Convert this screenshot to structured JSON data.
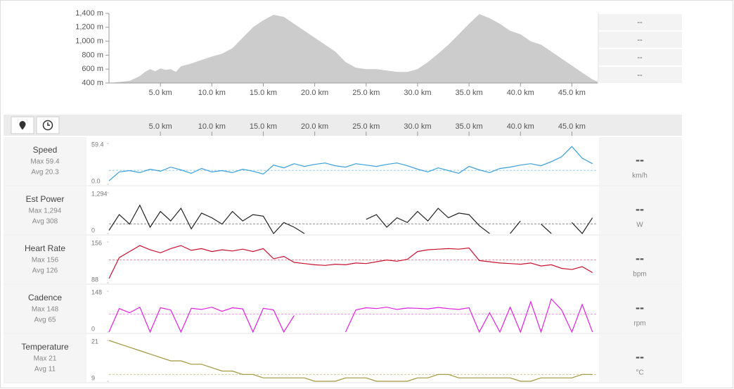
{
  "chart_data": [
    {
      "type": "area",
      "color": "#cccccc",
      "x": [
        0,
        2,
        3,
        3.5,
        4,
        4.5,
        5,
        5.5,
        6,
        6.5,
        7,
        8,
        9,
        10,
        11,
        12,
        13,
        14,
        15,
        16,
        17,
        18,
        19,
        20,
        21,
        22,
        23,
        24,
        25,
        26,
        27,
        28,
        29,
        30,
        31,
        32,
        33,
        34,
        35,
        36,
        37,
        38,
        39,
        40,
        41,
        42,
        43,
        44,
        45,
        46,
        47,
        47.5
      ],
      "values": [
        400,
        430,
        500,
        560,
        600,
        570,
        610,
        590,
        600,
        560,
        640,
        680,
        730,
        780,
        820,
        900,
        1050,
        1200,
        1300,
        1380,
        1350,
        1250,
        1150,
        1050,
        950,
        850,
        700,
        620,
        600,
        600,
        580,
        560,
        560,
        600,
        700,
        820,
        950,
        1100,
        1250,
        1390,
        1330,
        1250,
        1150,
        1100,
        1000,
        950,
        850,
        750,
        650,
        550,
        450,
        420
      ],
      "xlim": [
        0,
        47.5
      ],
      "ylim": [
        400,
        1400
      ],
      "xticks": [
        {
          "value": 5,
          "label": "5.0 km"
        },
        {
          "value": 10,
          "label": "10.0 km"
        },
        {
          "value": 15,
          "label": "15.0 km"
        },
        {
          "value": 20,
          "label": "20.0 km"
        },
        {
          "value": 25,
          "label": "25.0 km"
        },
        {
          "value": 30,
          "label": "30.0 km"
        },
        {
          "value": 35,
          "label": "35.0 km"
        },
        {
          "value": 40,
          "label": "40.0 km"
        },
        {
          "value": 45,
          "label": "45.0 km"
        }
      ],
      "yticks": [
        {
          "value": 400,
          "label": "400 m"
        },
        {
          "value": 600,
          "label": "600 m"
        },
        {
          "value": 800,
          "label": "800 m"
        },
        {
          "value": 1000,
          "label": "1,000 m"
        },
        {
          "value": 1200,
          "label": "1,200 m"
        },
        {
          "value": 1400,
          "label": "1,400 m"
        }
      ],
      "summary": [
        "--",
        "--",
        "--",
        "--"
      ]
    },
    {
      "type": "line",
      "x": [
        0,
        1,
        2,
        3,
        4,
        5,
        6,
        7,
        8,
        9,
        10,
        11,
        12,
        13,
        14,
        15,
        16,
        17,
        18,
        19,
        20,
        21,
        22,
        23,
        24,
        25,
        26,
        27,
        28,
        29,
        30,
        31,
        32,
        33,
        34,
        35,
        36,
        37,
        38,
        39,
        40,
        41,
        42,
        43,
        44,
        45,
        46,
        47
      ],
      "xlim": [
        0,
        47.5
      ],
      "xticks": [
        {
          "value": 5,
          "label": "5.0 km"
        },
        {
          "value": 10,
          "label": "10.0 km"
        },
        {
          "value": 15,
          "label": "15.0 km"
        },
        {
          "value": 20,
          "label": "20.0 km"
        },
        {
          "value": 25,
          "label": "25.0 km"
        },
        {
          "value": 30,
          "label": "30.0 km"
        },
        {
          "value": 35,
          "label": "35.0 km"
        },
        {
          "value": 40,
          "label": "40.0 km"
        },
        {
          "value": 45,
          "label": "45.0 km"
        }
      ],
      "series": [
        {
          "name": "Speed",
          "max_label": "Max 59.4",
          "avg": 20.3,
          "avg_label": "Avg 20.3",
          "current": "--",
          "unit": "km/h",
          "color": "#3a9fd8",
          "ylim": [
            0,
            59.4
          ],
          "yticks": [
            {
              "value": 0,
              "label": "0.0"
            },
            59.4
          ],
          "values": [
            5,
            18,
            20,
            17,
            22,
            19,
            25,
            21,
            16,
            23,
            18,
            20,
            17,
            22,
            19,
            15,
            28,
            24,
            30,
            26,
            29,
            31,
            27,
            25,
            30,
            28,
            26,
            29,
            31,
            27,
            22,
            18,
            24,
            20,
            16,
            26,
            21,
            17,
            23,
            25,
            28,
            30,
            27,
            33,
            40,
            55,
            38,
            30
          ]
        },
        {
          "name": "Est Power",
          "max_label": "Max 1,294",
          "avg": 308,
          "avg_label": "Avg 308",
          "current": "--",
          "unit": "W",
          "color": "#222222",
          "ylim": [
            0,
            1294
          ],
          "yticks": [
            0,
            {
              "value": 1294,
              "label": "1,294"
            }
          ],
          "values": [
            100,
            600,
            300,
            900,
            200,
            700,
            400,
            800,
            150,
            650,
            500,
            300,
            700,
            400,
            600,
            550,
            0,
            350,
            200,
            0,
            null,
            null,
            0,
            null,
            null,
            450,
            600,
            200,
            500,
            350,
            700,
            400,
            800,
            500,
            650,
            600,
            250,
            0,
            null,
            0,
            400,
            null,
            300,
            0,
            null,
            350,
            0,
            500
          ]
        },
        {
          "name": "Heart Rate",
          "max_label": "Max 156",
          "avg": 126,
          "avg_label": "Avg 126",
          "current": "--",
          "unit": "bpm",
          "color": "#c8102e",
          "ylim": [
            88,
            156
          ],
          "yticks": [
            88,
            156
          ],
          "values": [
            95,
            130,
            140,
            150,
            143,
            138,
            145,
            150,
            142,
            145,
            140,
            143,
            141,
            144,
            140,
            145,
            128,
            132,
            122,
            120,
            118,
            117,
            119,
            118,
            121,
            120,
            123,
            126,
            124,
            127,
            140,
            143,
            144,
            145,
            144,
            146,
            125,
            123,
            121,
            120,
            119,
            121,
            116,
            118,
            112,
            110,
            115,
            105
          ]
        },
        {
          "name": "Cadence",
          "max_label": "Max 148",
          "avg": 65,
          "avg_label": "Avg 65",
          "current": "--",
          "unit": "rpm",
          "color": "#e020e0",
          "ylim": [
            0,
            148
          ],
          "yticks": [
            0,
            148
          ],
          "values": [
            0,
            85,
            70,
            90,
            0,
            88,
            80,
            0,
            86,
            82,
            90,
            75,
            88,
            84,
            0,
            86,
            80,
            0,
            60,
            null,
            null,
            null,
            null,
            0,
            80,
            88,
            85,
            90,
            82,
            87,
            86,
            84,
            89,
            85,
            82,
            88,
            0,
            70,
            0,
            90,
            0,
            110,
            0,
            120,
            80,
            0,
            100,
            0
          ]
        },
        {
          "name": "Temperature",
          "max_label": "Max 21",
          "avg": 11,
          "avg_label": "Avg 11",
          "current": "--",
          "unit": "°C",
          "color": "#a0963c",
          "ylim": [
            9,
            21
          ],
          "yticks": [
            9,
            21
          ],
          "values": [
            21,
            20,
            19,
            18,
            17,
            16,
            15,
            15,
            14,
            14,
            13,
            12,
            12,
            11,
            11,
            10,
            10,
            10,
            10,
            10,
            9,
            9,
            9,
            10,
            10,
            10,
            9,
            9,
            9,
            9,
            10,
            10,
            11,
            11,
            10,
            10,
            10,
            10,
            10,
            10,
            9,
            9,
            10,
            10,
            10,
            10,
            11,
            11
          ]
        }
      ]
    }
  ]
}
